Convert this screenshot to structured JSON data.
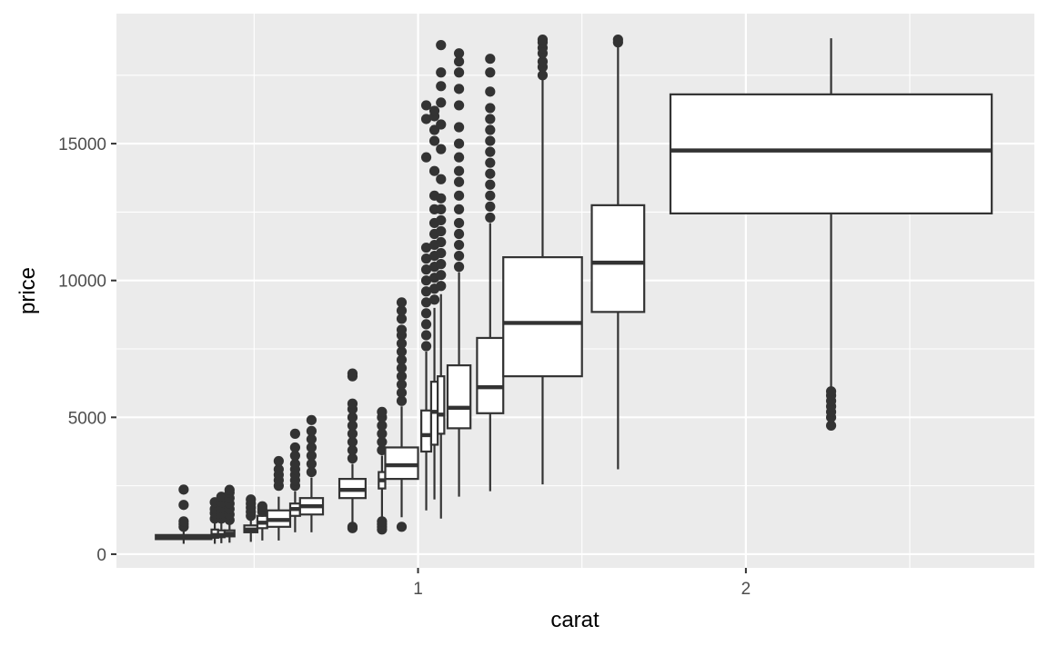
{
  "chart_data": {
    "type": "boxplot",
    "xlabel": "carat",
    "ylabel": "price",
    "xlim": [
      0.08,
      2.88
    ],
    "ylim": [
      -500,
      19750
    ],
    "x_ticks": [
      1,
      2
    ],
    "x_tick_labels": [
      "1",
      "2"
    ],
    "y_ticks": [
      0,
      5000,
      10000,
      15000
    ],
    "y_tick_labels": [
      "0",
      "5000",
      "10000",
      "15000"
    ],
    "x_minor_ticks": [
      0.5,
      1.5,
      2.5
    ],
    "y_minor_ticks": [
      2500,
      7500,
      12500,
      17500
    ],
    "grid": true,
    "colors": {
      "panel": "#ebebeb",
      "grid": "#ffffff",
      "box_fill": "#ffffff",
      "box_stroke": "#333333",
      "outlier": "#333333",
      "tick_label": "#4d4d4d",
      "axis_title": "#000000"
    },
    "boxes": [
      {
        "x0": 0.2,
        "x1": 0.37,
        "q1": 550,
        "median": 600,
        "q3": 700,
        "lo": 380,
        "hi": 990,
        "outliers": [
          1000,
          1100,
          1200,
          1800,
          2360
        ]
      },
      {
        "x0": 0.37,
        "x1": 0.39,
        "q1": 600,
        "median": 700,
        "q3": 900,
        "lo": 380,
        "hi": 1200,
        "outliers": [
          1300,
          1500,
          1650,
          1900
        ]
      },
      {
        "x0": 0.39,
        "x1": 0.41,
        "q1": 620,
        "median": 700,
        "q3": 870,
        "lo": 400,
        "hi": 1200,
        "outliers": [
          1300,
          1500,
          1700,
          1900,
          2100
        ]
      },
      {
        "x0": 0.41,
        "x1": 0.44,
        "q1": 650,
        "median": 750,
        "q3": 870,
        "lo": 420,
        "hi": 1150,
        "outliers": [
          1250,
          1450,
          1650,
          1850,
          2050,
          2250,
          2350
        ]
      },
      {
        "x0": 0.47,
        "x1": 0.51,
        "q1": 800,
        "median": 900,
        "q3": 1050,
        "lo": 450,
        "hi": 1350,
        "outliers": [
          1400,
          1550,
          1700,
          1850,
          2000
        ]
      },
      {
        "x0": 0.51,
        "x1": 0.54,
        "q1": 950,
        "median": 1150,
        "q3": 1400,
        "lo": 500,
        "hi": 1500,
        "outliers": [
          1550,
          1650,
          1750
        ]
      },
      {
        "x0": 0.54,
        "x1": 0.61,
        "q1": 1000,
        "median": 1250,
        "q3": 1600,
        "lo": 500,
        "hi": 2100,
        "outliers": [
          2500,
          2700,
          2900,
          3100,
          3400
        ]
      },
      {
        "x0": 0.61,
        "x1": 0.64,
        "q1": 1400,
        "median": 1650,
        "q3": 1850,
        "lo": 800,
        "hi": 2300,
        "outliers": [
          2500,
          2700,
          2900,
          3100,
          3300,
          3600,
          3900,
          4400
        ]
      },
      {
        "x0": 0.64,
        "x1": 0.71,
        "q1": 1450,
        "median": 1750,
        "q3": 2050,
        "lo": 800,
        "hi": 2800,
        "outliers": [
          3000,
          3300,
          3600,
          3900,
          4200,
          4500,
          4900
        ]
      },
      {
        "x0": 0.76,
        "x1": 0.84,
        "q1": 2050,
        "median": 2350,
        "q3": 2750,
        "lo": 1050,
        "hi": 3300,
        "outliers": [
          950,
          1000,
          3500,
          3800,
          4100,
          4400,
          4700,
          5000,
          5300,
          5500,
          6500,
          6600
        ]
      },
      {
        "x0": 0.88,
        "x1": 0.9,
        "q1": 2400,
        "median": 2700,
        "q3": 3000,
        "lo": 1100,
        "hi": 3600,
        "outliers": [
          900,
          1000,
          1100,
          1200,
          3800,
          4100,
          4400,
          4700,
          5000,
          5200
        ]
      },
      {
        "x0": 0.9,
        "x1": 1.0,
        "q1": 2750,
        "median": 3250,
        "q3": 3900,
        "lo": 1350,
        "hi": 5400,
        "outliers": [
          1000,
          5600,
          5900,
          6200,
          6500,
          6800,
          7100,
          7400,
          7700,
          8000,
          8200,
          8600,
          8900,
          9200
        ]
      },
      {
        "x0": 1.01,
        "x1": 1.04,
        "q1": 3750,
        "median": 4350,
        "q3": 5250,
        "lo": 1600,
        "hi": 7400,
        "outliers": [
          7600,
          8000,
          8400,
          8800,
          9200,
          9600,
          10000,
          10400,
          10800,
          11200,
          14500,
          15900,
          16400
        ]
      },
      {
        "x0": 1.04,
        "x1": 1.06,
        "q1": 4000,
        "median": 5200,
        "q3": 6300,
        "lo": 2000,
        "hi": 9000,
        "outliers": [
          9300,
          9700,
          10100,
          10500,
          10900,
          11300,
          11700,
          12100,
          12600,
          13100,
          14000,
          15100,
          15500,
          16000,
          16200
        ]
      },
      {
        "x0": 1.06,
        "x1": 1.08,
        "q1": 4400,
        "median": 5100,
        "q3": 6500,
        "lo": 1300,
        "hi": 9500,
        "outliers": [
          9800,
          10200,
          10600,
          11000,
          11400,
          11800,
          12200,
          12600,
          13000,
          13700,
          14800,
          15700,
          16500,
          17100,
          17600,
          18600
        ]
      },
      {
        "x0": 1.09,
        "x1": 1.16,
        "q1": 4600,
        "median": 5350,
        "q3": 6900,
        "lo": 2100,
        "hi": 10300,
        "outliers": [
          10500,
          10900,
          11300,
          11700,
          12100,
          12600,
          13100,
          13600,
          14000,
          14500,
          15000,
          15600,
          16400,
          17000,
          17600,
          18000,
          18300
        ]
      },
      {
        "x0": 1.18,
        "x1": 1.26,
        "q1": 5150,
        "median": 6100,
        "q3": 7900,
        "lo": 2300,
        "hi": 12100,
        "outliers": [
          12300,
          12700,
          13100,
          13500,
          13900,
          14300,
          14700,
          15100,
          15500,
          15900,
          16300,
          16900,
          17600,
          18100
        ]
      },
      {
        "x0": 1.26,
        "x1": 1.5,
        "q1": 6500,
        "median": 8450,
        "q3": 10850,
        "lo": 2550,
        "hi": 17400,
        "outliers": [
          17500,
          17800,
          18000,
          18300,
          18500,
          18700,
          18800
        ]
      },
      {
        "x0": 1.53,
        "x1": 1.69,
        "q1": 8850,
        "median": 10650,
        "q3": 12750,
        "lo": 3100,
        "hi": 18600,
        "outliers": [
          18700,
          18800
        ]
      },
      {
        "x0": 1.77,
        "x1": 2.75,
        "q1": 12450,
        "median": 14750,
        "q3": 16800,
        "lo": 6100,
        "hi": 18850,
        "outliers": [
          4700,
          5000,
          5200,
          5400,
          5600,
          5800,
          5950
        ]
      }
    ]
  }
}
